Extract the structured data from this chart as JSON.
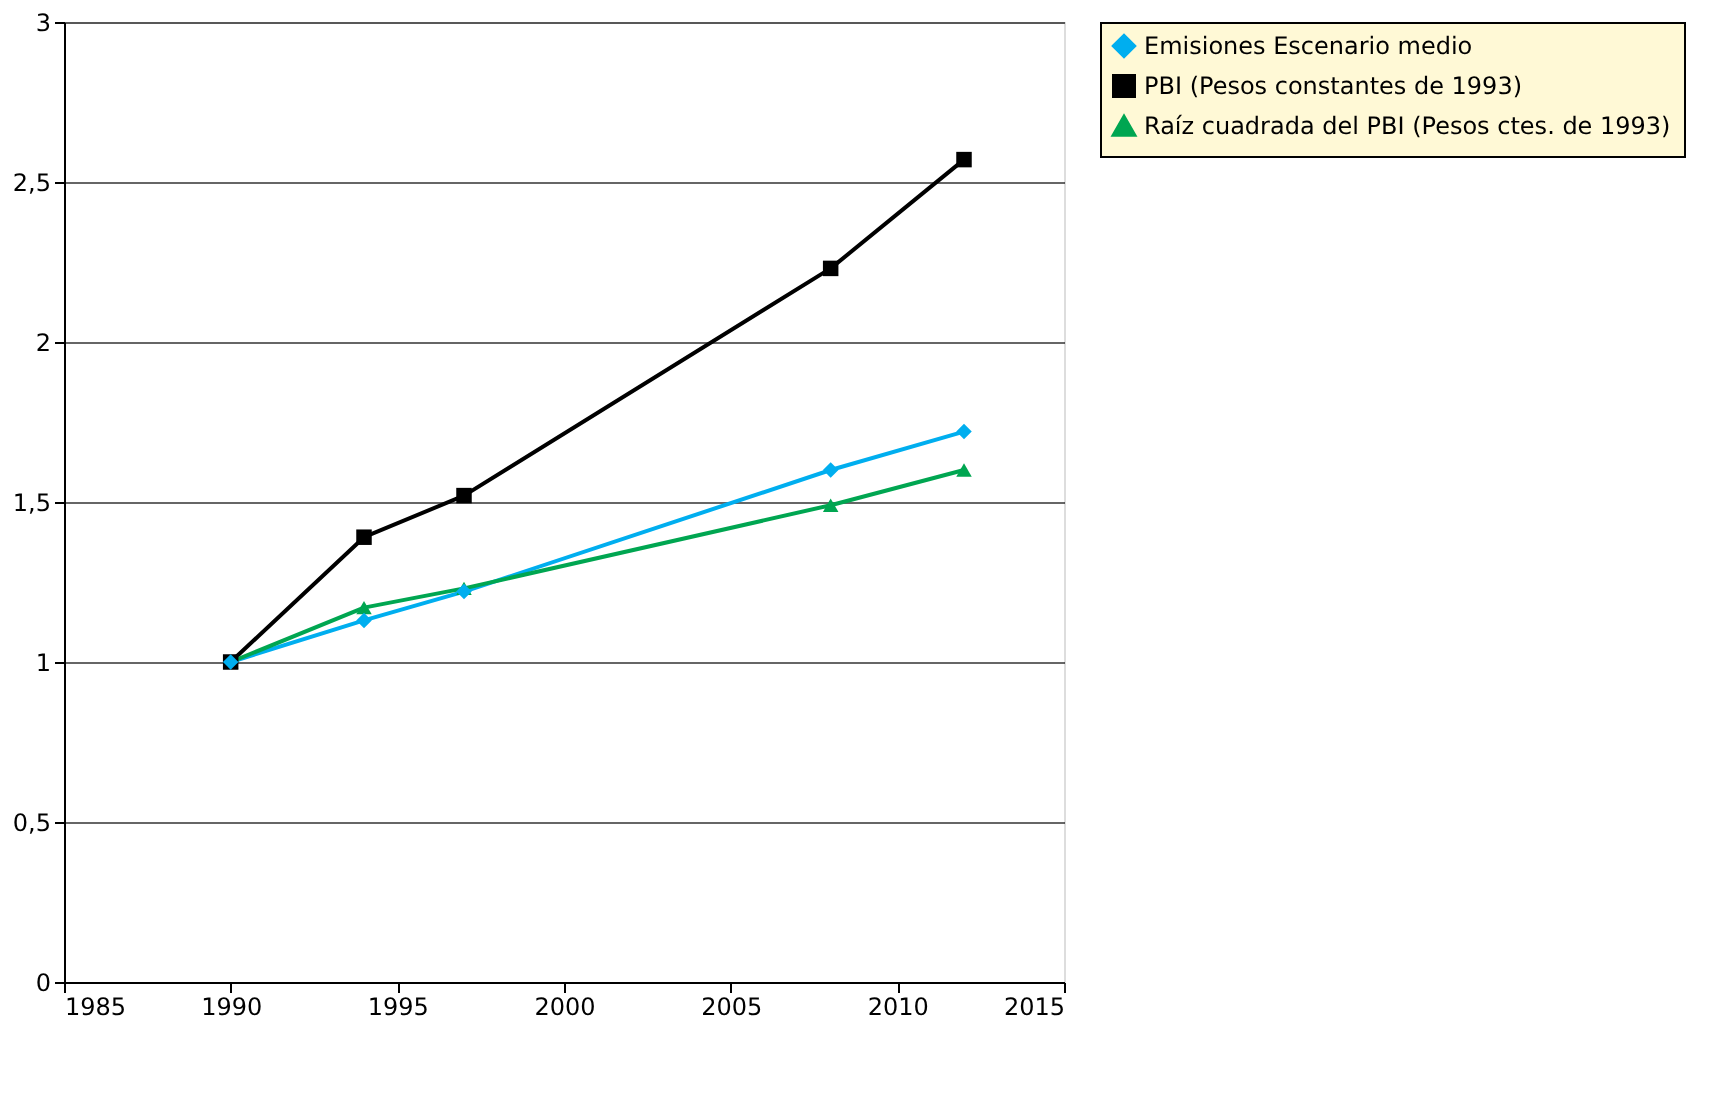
{
  "chart_data": {
    "type": "line",
    "x": [
      1990,
      1994,
      1997,
      2008,
      2012
    ],
    "series": [
      {
        "name": "Emisiones Escenario medio",
        "color": "#00aeef",
        "marker": "diamond",
        "values": [
          1.0,
          1.13,
          1.22,
          1.6,
          1.72
        ]
      },
      {
        "name": "PBI (Pesos constantes de 1993)",
        "color": "#000000",
        "marker": "square",
        "values": [
          1.0,
          1.39,
          1.52,
          2.23,
          2.57
        ]
      },
      {
        "name": "Raíz cuadrada del PBI (Pesos ctes. de 1993)",
        "color": "#00a651",
        "marker": "triangle",
        "values": [
          1.0,
          1.17,
          1.23,
          1.49,
          1.6
        ]
      }
    ],
    "xlim": [
      1985,
      2015
    ],
    "xticks": [
      1985,
      1990,
      1995,
      2000,
      2005,
      2010,
      2015
    ],
    "ylim": [
      0,
      3
    ],
    "yticks": [
      0,
      {
        "value": 0.5,
        "label": "0,5"
      },
      1,
      {
        "value": 1.5,
        "label": "1,5"
      },
      2,
      {
        "value": 2.5,
        "label": "2,5"
      },
      3
    ],
    "grid": "y",
    "legend": "right",
    "line_style": "solid"
  }
}
